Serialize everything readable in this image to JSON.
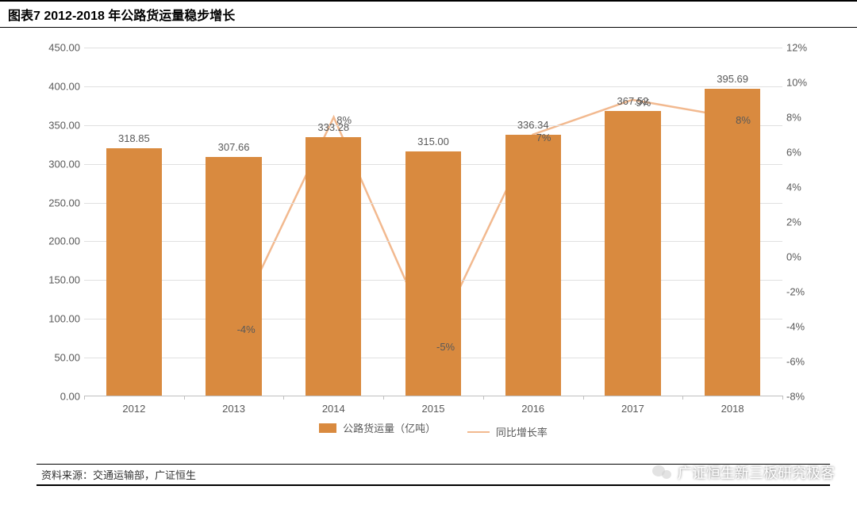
{
  "title": "图表7 2012-2018 年公路货运量稳步增长",
  "source": "资料来源：交通运输部，广证恒生",
  "watermark": "广证恒生新三板研究极客",
  "chart": {
    "type": "bar+line",
    "categories": [
      "2012",
      "2013",
      "2014",
      "2015",
      "2016",
      "2017",
      "2018"
    ],
    "bars": {
      "label": "公路货运量（亿吨）",
      "values": [
        318.85,
        307.66,
        333.28,
        315.0,
        336.34,
        367.52,
        395.69
      ],
      "value_labels": [
        "318.85",
        "307.66",
        "333.28",
        "315.00",
        "336.34",
        "367.52",
        "395.69"
      ],
      "color": "#d98a3f",
      "bar_width_frac": 0.56
    },
    "line": {
      "label": "同比增长率",
      "values": [
        null,
        -4,
        8,
        -5,
        7,
        9,
        8
      ],
      "value_labels": [
        null,
        "-4%",
        "8%",
        "-5%",
        "7%",
        "9%",
        "8%"
      ],
      "color": "#f2b98f",
      "stroke_width": 2.5
    },
    "y_left": {
      "min": 0,
      "max": 450,
      "step": 50,
      "decimals": 2
    },
    "y_right": {
      "min": -8,
      "max": 12,
      "step": 2,
      "suffix": "%"
    },
    "colors": {
      "grid": "#e0e0e0",
      "axis": "#bfbfbf",
      "text": "#595959",
      "background": "#ffffff"
    },
    "fontsize": {
      "title": 16,
      "axis": 13,
      "labels": 13
    }
  }
}
